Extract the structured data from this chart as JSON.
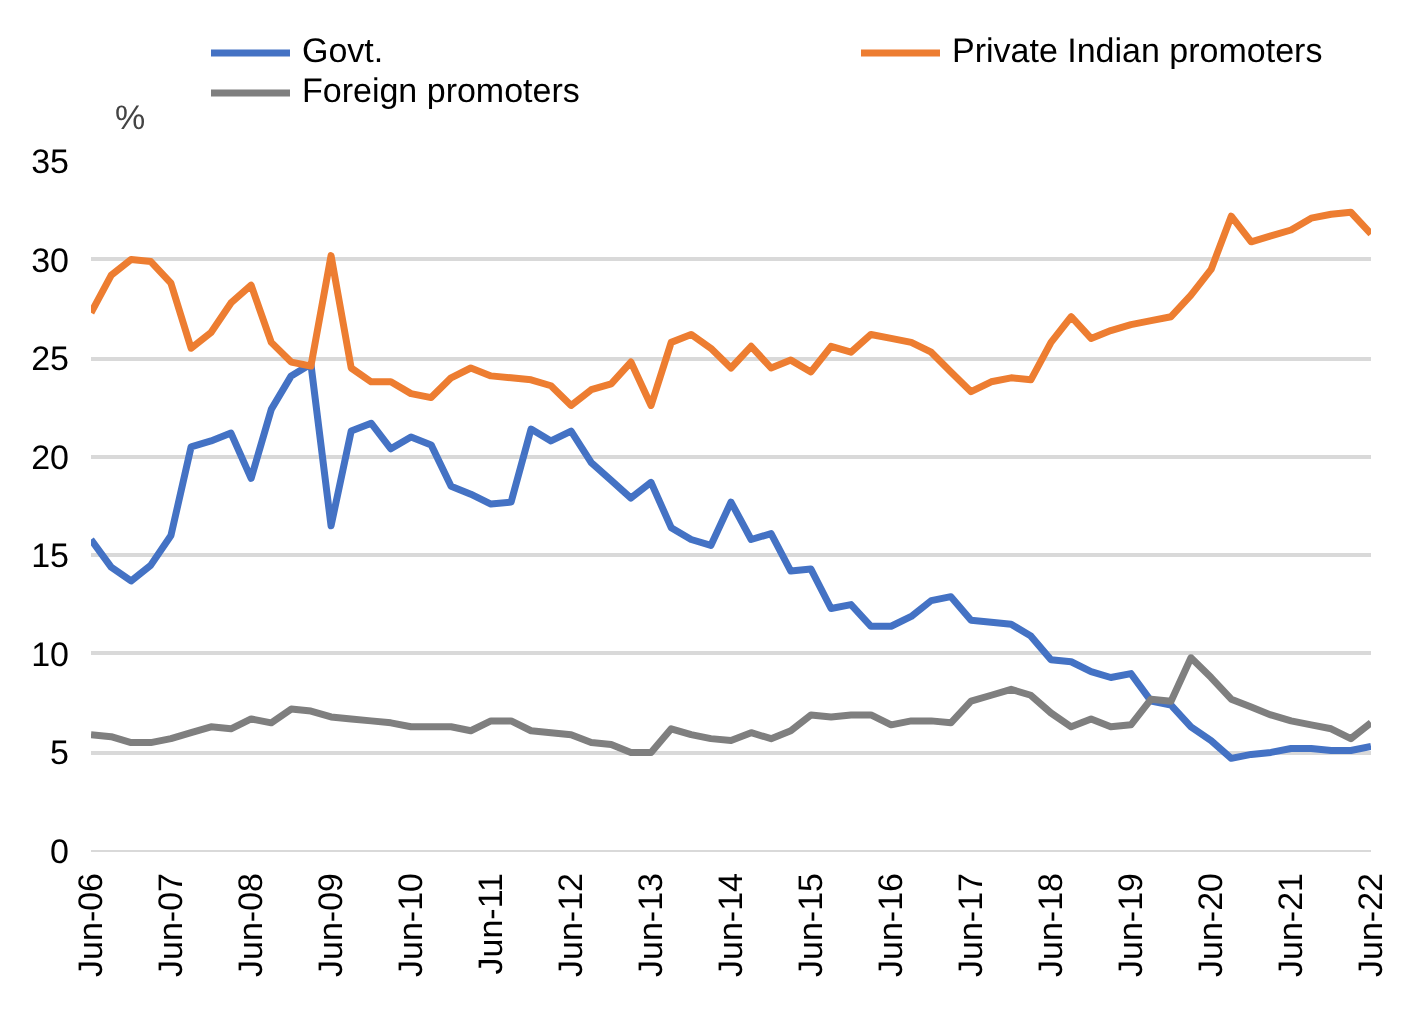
{
  "chart_data": {
    "type": "line",
    "ylabel": "%",
    "x": [
      "2006-06",
      "2006-09",
      "2006-12",
      "2007-03",
      "2007-06",
      "2007-09",
      "2007-12",
      "2008-03",
      "2008-06",
      "2008-09",
      "2008-12",
      "2009-03",
      "2009-06",
      "2009-09",
      "2009-12",
      "2010-03",
      "2010-06",
      "2010-09",
      "2010-12",
      "2011-03",
      "2011-06",
      "2011-09",
      "2011-12",
      "2012-03",
      "2012-06",
      "2012-09",
      "2012-12",
      "2013-03",
      "2013-06",
      "2013-09",
      "2013-12",
      "2014-03",
      "2014-06",
      "2014-09",
      "2014-12",
      "2015-03",
      "2015-06",
      "2015-09",
      "2015-12",
      "2016-03",
      "2016-06",
      "2016-09",
      "2016-12",
      "2017-03",
      "2017-06",
      "2017-09",
      "2017-12",
      "2018-03",
      "2018-06",
      "2018-09",
      "2018-12",
      "2019-03",
      "2019-06",
      "2019-09",
      "2019-12",
      "2020-03",
      "2020-06",
      "2020-09",
      "2020-12",
      "2021-03",
      "2021-06",
      "2021-09",
      "2021-12",
      "2022-03",
      "2022-06"
    ],
    "series": [
      {
        "name": "Govt.",
        "color": "#4472c4",
        "values": [
          15.8,
          14.4,
          13.7,
          14.5,
          16.0,
          20.5,
          20.8,
          21.2,
          18.9,
          22.4,
          24.1,
          24.7,
          16.5,
          21.3,
          21.7,
          20.4,
          21.0,
          20.6,
          18.5,
          18.1,
          17.6,
          17.7,
          21.4,
          20.8,
          21.3,
          19.7,
          18.8,
          17.9,
          18.7,
          16.4,
          15.8,
          15.5,
          17.7,
          15.8,
          16.1,
          14.2,
          14.3,
          12.3,
          12.5,
          11.4,
          11.4,
          11.9,
          12.7,
          12.9,
          11.7,
          11.6,
          11.5,
          10.9,
          9.7,
          9.6,
          9.1,
          8.8,
          9.0,
          7.6,
          7.4,
          6.3,
          5.6,
          4.7,
          4.9,
          5.0,
          5.2,
          5.2,
          5.1,
          5.1,
          5.3
        ]
      },
      {
        "name": "Private Indian promoters",
        "color": "#ed7d31",
        "values": [
          27.3,
          29.2,
          30.0,
          29.9,
          28.8,
          25.5,
          26.3,
          27.8,
          28.7,
          25.8,
          24.8,
          24.6,
          30.2,
          24.5,
          23.8,
          23.8,
          23.2,
          23.0,
          24.0,
          24.5,
          24.1,
          24.0,
          23.9,
          23.6,
          22.6,
          23.4,
          23.7,
          24.8,
          22.6,
          25.8,
          26.2,
          25.5,
          24.5,
          25.6,
          24.5,
          24.9,
          24.3,
          25.6,
          25.3,
          26.2,
          26.0,
          25.8,
          25.3,
          24.3,
          23.3,
          23.8,
          24.0,
          23.9,
          25.8,
          27.1,
          26.0,
          26.4,
          26.7,
          26.9,
          27.1,
          28.2,
          29.5,
          32.2,
          30.9,
          31.2,
          31.5,
          32.1,
          32.3,
          32.4,
          31.3
        ]
      },
      {
        "name": "Foreign promoters",
        "color": "#7f7f7f",
        "values": [
          5.9,
          5.8,
          5.5,
          5.5,
          5.7,
          6.0,
          6.3,
          6.2,
          6.7,
          6.5,
          7.2,
          7.1,
          6.8,
          6.7,
          6.6,
          6.5,
          6.3,
          6.3,
          6.3,
          6.1,
          6.6,
          6.6,
          6.1,
          6.0,
          5.9,
          5.5,
          5.4,
          5.0,
          5.0,
          6.2,
          5.9,
          5.7,
          5.6,
          6.0,
          5.7,
          6.1,
          6.9,
          6.8,
          6.9,
          6.9,
          6.4,
          6.6,
          6.6,
          6.5,
          7.6,
          7.9,
          8.2,
          7.9,
          7.0,
          6.3,
          6.7,
          6.3,
          6.4,
          7.7,
          7.6,
          9.8,
          8.8,
          7.7,
          7.3,
          6.9,
          6.6,
          6.4,
          6.2,
          5.7,
          6.5
        ]
      }
    ],
    "xlim": [
      "2006-06",
      "2022-06"
    ],
    "xticks": [
      {
        "value": "2006-06",
        "label": "Jun-06"
      },
      {
        "value": "2007-06",
        "label": "Jun-07"
      },
      {
        "value": "2008-06",
        "label": "Jun-08"
      },
      {
        "value": "2009-06",
        "label": "Jun-09"
      },
      {
        "value": "2010-06",
        "label": "Jun-10"
      },
      {
        "value": "2011-06",
        "label": "Jun-11"
      },
      {
        "value": "2012-06",
        "label": "Jun-12"
      },
      {
        "value": "2013-06",
        "label": "Jun-13"
      },
      {
        "value": "2014-06",
        "label": "Jun-14"
      },
      {
        "value": "2015-06",
        "label": "Jun-15"
      },
      {
        "value": "2016-06",
        "label": "Jun-16"
      },
      {
        "value": "2017-06",
        "label": "Jun-17"
      },
      {
        "value": "2018-06",
        "label": "Jun-18"
      },
      {
        "value": "2019-06",
        "label": "Jun-19"
      },
      {
        "value": "2020-06",
        "label": "Jun-20"
      },
      {
        "value": "2021-06",
        "label": "Jun-21"
      },
      {
        "value": "2022-06",
        "label": "Jun-22"
      }
    ],
    "ylim": [
      0,
      35
    ],
    "yticks": [
      0,
      5,
      10,
      15,
      20,
      25,
      30,
      35
    ],
    "grid": "y",
    "legend": "top",
    "marker": "none",
    "line_style": "solid"
  }
}
